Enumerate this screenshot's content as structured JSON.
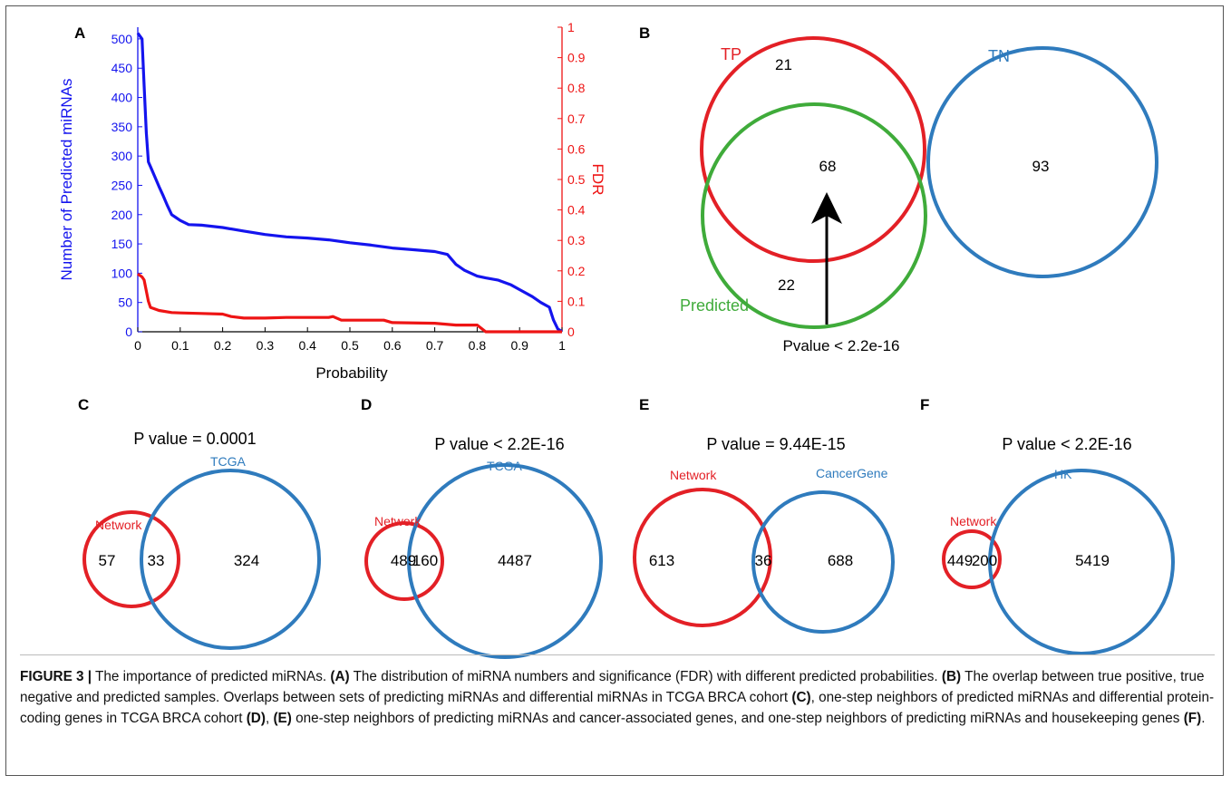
{
  "chart_data": [
    {
      "panel": "A",
      "type": "line",
      "xlabel": "Probability",
      "ylabel": "Number of Predicted miRNAs",
      "ylabel_right": "FDR",
      "xlim": [
        0,
        1
      ],
      "ylim": [
        0,
        520
      ],
      "ylim_right": [
        0,
        1
      ],
      "x_ticks": [
        "0",
        "0.1",
        "0.2",
        "0.3",
        "0.4",
        "0.5",
        "0.6",
        "0.7",
        "0.8",
        "0.9",
        "1"
      ],
      "y_ticks": [
        "0",
        "50",
        "100",
        "150",
        "200",
        "250",
        "300",
        "350",
        "400",
        "450",
        "500"
      ],
      "y_ticks_right": [
        "0",
        "0.1",
        "0.2",
        "0.3",
        "0.4",
        "0.5",
        "0.6",
        "0.7",
        "0.8",
        "0.9",
        "1"
      ],
      "series": [
        {
          "axis": "left",
          "color": "#1414ee",
          "points": [
            [
              0,
              510
            ],
            [
              0.005,
              505
            ],
            [
              0.01,
              500
            ],
            [
              0.015,
              420
            ],
            [
              0.02,
              340
            ],
            [
              0.025,
              290
            ],
            [
              0.03,
              282
            ],
            [
              0.04,
              265
            ],
            [
              0.05,
              248
            ],
            [
              0.06,
              232
            ],
            [
              0.07,
              215
            ],
            [
              0.08,
              200
            ],
            [
              0.09,
              195
            ],
            [
              0.1,
              190
            ],
            [
              0.12,
              183
            ],
            [
              0.15,
              182
            ],
            [
              0.2,
              178
            ],
            [
              0.25,
              172
            ],
            [
              0.3,
              166
            ],
            [
              0.35,
              162
            ],
            [
              0.4,
              160
            ],
            [
              0.45,
              157
            ],
            [
              0.5,
              152
            ],
            [
              0.55,
              148
            ],
            [
              0.6,
              143
            ],
            [
              0.65,
              140
            ],
            [
              0.7,
              137
            ],
            [
              0.73,
              132
            ],
            [
              0.75,
              115
            ],
            [
              0.77,
              105
            ],
            [
              0.8,
              95
            ],
            [
              0.82,
              92
            ],
            [
              0.85,
              88
            ],
            [
              0.88,
              80
            ],
            [
              0.9,
              72
            ],
            [
              0.93,
              60
            ],
            [
              0.95,
              50
            ],
            [
              0.97,
              42
            ],
            [
              0.98,
              20
            ],
            [
              0.99,
              5
            ],
            [
              1,
              0
            ]
          ]
        },
        {
          "axis": "right",
          "color": "#ee1414",
          "points": [
            [
              0,
              0.19
            ],
            [
              0.01,
              0.18
            ],
            [
              0.015,
              0.17
            ],
            [
              0.025,
              0.1
            ],
            [
              0.03,
              0.08
            ],
            [
              0.05,
              0.07
            ],
            [
              0.08,
              0.063
            ],
            [
              0.1,
              0.062
            ],
            [
              0.15,
              0.06
            ],
            [
              0.2,
              0.058
            ],
            [
              0.22,
              0.05
            ],
            [
              0.25,
              0.045
            ],
            [
              0.3,
              0.045
            ],
            [
              0.35,
              0.047
            ],
            [
              0.45,
              0.047
            ],
            [
              0.46,
              0.05
            ],
            [
              0.48,
              0.038
            ],
            [
              0.58,
              0.038
            ],
            [
              0.6,
              0.03
            ],
            [
              0.7,
              0.028
            ],
            [
              0.75,
              0.022
            ],
            [
              0.8,
              0.022
            ],
            [
              0.82,
              0.0
            ],
            [
              1,
              0.0
            ]
          ]
        }
      ]
    },
    {
      "panel": "B",
      "type": "venn",
      "sets": [
        {
          "label": "TP",
          "color": "#e32026"
        },
        {
          "label": "Predicted",
          "color": "#3fab3a"
        },
        {
          "label": "TN",
          "color": "#2f7bbd"
        }
      ],
      "regions": {
        "tp_only": "21",
        "tp_predicted": "68",
        "predicted_only": "22",
        "tn_only": "93"
      },
      "annotation": "Pvalue < 2.2e-16"
    },
    {
      "panel": "C",
      "type": "venn",
      "title": "P value = 0.0001",
      "sets": [
        {
          "label": "Network",
          "color": "#e32026"
        },
        {
          "label": "TCGA",
          "color": "#2f7bbd"
        }
      ],
      "regions": {
        "left_only": "57",
        "overlap": "33",
        "right_only": "324"
      }
    },
    {
      "panel": "D",
      "type": "venn",
      "title": "P value < 2.2E-16",
      "sets": [
        {
          "label": "Network",
          "color": "#e32026"
        },
        {
          "label": "TCGA",
          "color": "#2f7bbd"
        }
      ],
      "regions": {
        "left_only": "489",
        "overlap": "160",
        "right_only": "4487"
      }
    },
    {
      "panel": "E",
      "type": "venn",
      "title": "P value = 9.44E-15",
      "sets": [
        {
          "label": "Network",
          "color": "#e32026"
        },
        {
          "label": "CancerGene",
          "color": "#2f7bbd"
        }
      ],
      "regions": {
        "left_only": "613",
        "overlap": "36",
        "right_only": "688"
      }
    },
    {
      "panel": "F",
      "type": "venn",
      "title": "P value < 2.2E-16",
      "sets": [
        {
          "label": "Network",
          "color": "#e32026"
        },
        {
          "label": "HK",
          "color": "#2f7bbd"
        }
      ],
      "regions": {
        "left_only": "449",
        "overlap": "200",
        "right_only": "5419"
      }
    }
  ],
  "caption": {
    "label": "FIGURE 3 |",
    "parts": [
      {
        "text": " The importance of predicted miRNAs. ",
        "bold": false
      },
      {
        "text": "(A)",
        "bold": true
      },
      {
        "text": " The distribution of miRNA numbers and significance (FDR) with different predicted probabilities. ",
        "bold": false
      },
      {
        "text": "(B)",
        "bold": true
      },
      {
        "text": " The overlap between true positive, true negative and predicted samples. Overlaps between sets of predicting miRNAs and differential miRNAs in TCGA BRCA cohort ",
        "bold": false
      },
      {
        "text": "(C)",
        "bold": true
      },
      {
        "text": ", one-step neighbors of predicted miRNAs and differential protein-coding genes in TCGA BRCA cohort ",
        "bold": false
      },
      {
        "text": "(D)",
        "bold": true
      },
      {
        "text": ", ",
        "bold": false
      },
      {
        "text": "(E)",
        "bold": true
      },
      {
        "text": " one-step neighbors of predicting miRNAs and cancer-associated genes, and one-step neighbors of predicting miRNAs and housekeeping genes ",
        "bold": false
      },
      {
        "text": "(F)",
        "bold": true
      },
      {
        "text": ".",
        "bold": false
      }
    ]
  }
}
